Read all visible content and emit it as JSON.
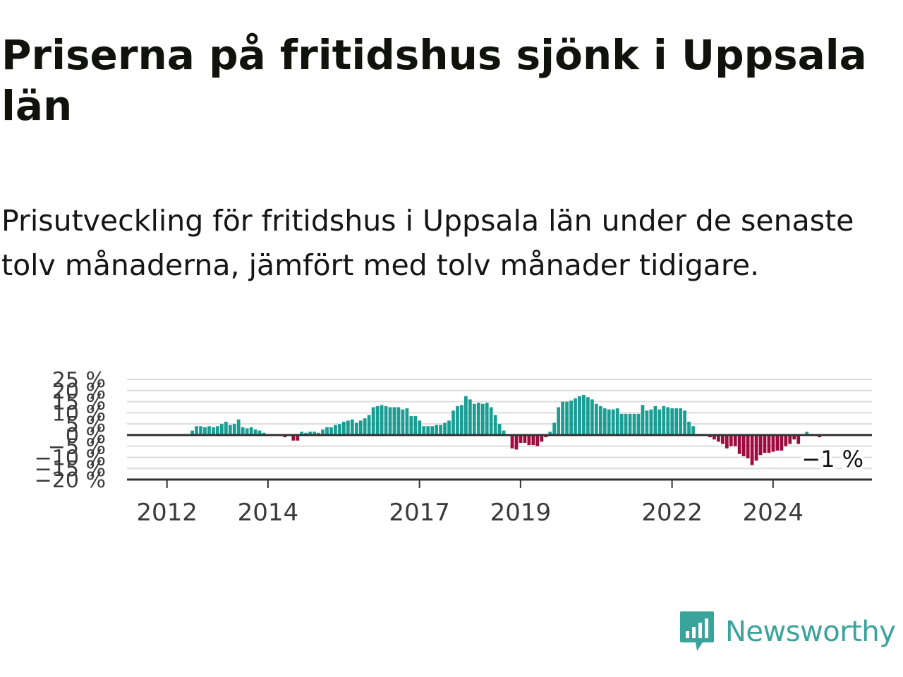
{
  "header": {
    "title": "Priserna på fritidshus sjönk i Uppsala län",
    "subtitle": "Prisutveckling för fritidshus i Uppsala län under de senaste tolv månaderna, jämfört med tolv månader tidigare."
  },
  "colors": {
    "positive": "#1a9e94",
    "negative": "#9e0b3e",
    "text": "#10120c",
    "grid": "#dcdcdc",
    "axis": "#333333",
    "brand": "#3aa39b"
  },
  "chart_data": {
    "type": "bar",
    "title": "",
    "xlabel": "",
    "ylabel": "",
    "ylim": [
      -20,
      25
    ],
    "y_ticks": [
      25,
      20,
      15,
      10,
      5,
      0,
      -5,
      -10,
      -15,
      -20
    ],
    "y_tick_labels": [
      "25 %",
      "20 %",
      "15 %",
      "10 %",
      "5 %",
      "0 %",
      "−5 %",
      "−10 %",
      "−15 %",
      "−20 %"
    ],
    "x_tick_labels": [
      "2012",
      "2014",
      "2017",
      "2019",
      "2022",
      "2024"
    ],
    "x_tick_dates": [
      "2012-01",
      "2014-01",
      "2017-01",
      "2019-01",
      "2022-01",
      "2024-01"
    ],
    "x_range": [
      "2011-04",
      "2025-12"
    ],
    "grid": true,
    "last_value_label": "−1 %",
    "series": [
      {
        "start": "2011-04",
        "values": [
          0,
          0,
          0,
          0,
          0,
          0,
          0,
          0,
          -0.5,
          0,
          0,
          0,
          0,
          0,
          0,
          2,
          4,
          4,
          3.5,
          4,
          3.5,
          4,
          5,
          6,
          4.5,
          5,
          7,
          3.5,
          3,
          3.5,
          2.5,
          2,
          1,
          0,
          0,
          0,
          0,
          -1,
          0,
          -2.5,
          -2.5,
          1.5,
          1,
          1.5,
          1.5,
          1,
          2.5,
          3.5,
          3.5,
          4.5,
          5,
          6,
          6.5,
          7,
          5.5,
          6.5,
          7.5,
          9,
          12.5,
          13,
          13.5,
          13,
          12.5,
          12.5,
          12.5,
          11.5,
          12,
          8.5,
          8.5,
          6.5,
          4,
          4,
          4,
          4.5,
          4.5,
          5.5,
          6.5,
          11,
          13,
          13.5,
          17.5,
          16,
          14,
          14.5,
          14,
          14.5,
          12.5,
          9,
          5,
          2,
          0,
          -6,
          -6.5,
          -3.5,
          -3.5,
          -4.5,
          -4.5,
          -5,
          -3,
          -1,
          1.5,
          5.5,
          12.5,
          15,
          15,
          15.5,
          16.5,
          17.5,
          18,
          17,
          16,
          14,
          13,
          12,
          11.5,
          11.5,
          12,
          9.5,
          9.5,
          9.5,
          9.5,
          9.5,
          13.5,
          11,
          11.5,
          13,
          11.5,
          13,
          12.5,
          12,
          12,
          12,
          11,
          6,
          4,
          0.5,
          0.5,
          0,
          -1,
          -2,
          -3,
          -4,
          -6,
          -5,
          -5,
          -8.5,
          -9.5,
          -10.5,
          -13.5,
          -11.5,
          -9,
          -8,
          -8,
          -7.5,
          -7,
          -7,
          -5,
          -4,
          -2,
          -4,
          0,
          1.5,
          0.5,
          0,
          -1
        ]
      }
    ]
  },
  "brand": {
    "name": "Newsworthy",
    "icon": "newsworthy-logo-icon"
  }
}
